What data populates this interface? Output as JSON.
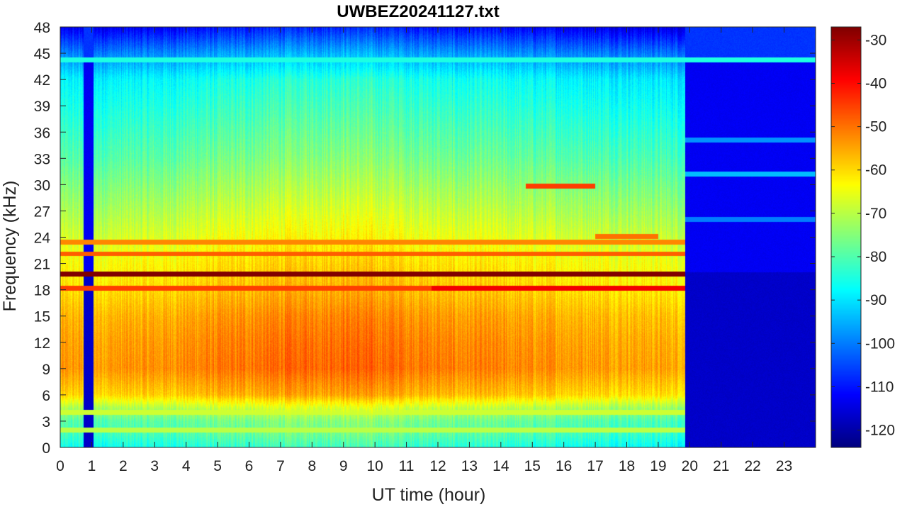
{
  "chart_data": {
    "type": "heatmap",
    "title": "UWBEZ20241127.txt",
    "xlabel": "UT time (hour)",
    "ylabel": "Frequency (kHz)",
    "xlim": [
      0,
      24
    ],
    "ylim": [
      0,
      48
    ],
    "xticks": [
      0,
      1,
      2,
      3,
      4,
      5,
      6,
      7,
      8,
      9,
      10,
      11,
      12,
      13,
      14,
      15,
      16,
      17,
      18,
      19,
      20,
      21,
      22,
      23
    ],
    "yticks": [
      0,
      3,
      6,
      9,
      12,
      15,
      18,
      21,
      24,
      27,
      30,
      33,
      36,
      39,
      42,
      45,
      48
    ],
    "colorbar": {
      "colormap": "jet",
      "range": [
        -124,
        -27
      ],
      "ticks": [
        -30,
        -40,
        -50,
        -60,
        -70,
        -80,
        -90,
        -100,
        -110,
        -120
      ]
    },
    "background_db": -123,
    "gap_intervals_hour": [
      [
        0.75,
        1.05
      ],
      [
        19.85,
        24
      ]
    ],
    "gap_db": -113,
    "base_spectrum": {
      "frequency_khz": [
        0,
        1.5,
        3,
        4.5,
        6,
        9,
        12,
        15,
        18,
        21,
        24,
        27,
        30,
        33,
        36,
        39,
        42,
        45,
        48
      ],
      "level_db": [
        -85,
        -80,
        -78,
        -70,
        -58,
        -52,
        -53,
        -55,
        -59,
        -62,
        -66,
        -70,
        -74,
        -78,
        -81,
        -84,
        -87,
        -98,
        -112
      ]
    },
    "time_modulation": {
      "hour": [
        0,
        3,
        5,
        7,
        9,
        10.5,
        12,
        14,
        16,
        18,
        19.8
      ],
      "offset_db": [
        -2,
        -1,
        1,
        3,
        4,
        3,
        1,
        0,
        -1,
        -2,
        -3
      ]
    },
    "emission_lines": [
      {
        "frequency_khz": 19.8,
        "level_db": -27,
        "from_hour": 0,
        "to_hour": 19.85
      },
      {
        "frequency_khz": 18.2,
        "level_db": -38,
        "from_hour": 11.8,
        "to_hour": 19.85
      },
      {
        "frequency_khz": 18.2,
        "level_db": -45,
        "from_hour": 0,
        "to_hour": 11.8
      },
      {
        "frequency_khz": 22.1,
        "level_db": -48,
        "from_hour": 0,
        "to_hour": 19.85
      },
      {
        "frequency_khz": 23.4,
        "level_db": -52,
        "from_hour": 0,
        "to_hour": 19.85
      },
      {
        "frequency_khz": 24.1,
        "level_db": -50,
        "from_hour": 17,
        "to_hour": 19
      },
      {
        "frequency_khz": 29.8,
        "level_db": -45,
        "from_hour": 14.8,
        "to_hour": 17
      },
      {
        "frequency_khz": 44.2,
        "level_db": -85,
        "from_hour": 0,
        "to_hour": 24
      },
      {
        "frequency_khz": 35.1,
        "level_db": -98,
        "from_hour": 19.85,
        "to_hour": 24
      },
      {
        "frequency_khz": 31.2,
        "level_db": -94,
        "from_hour": 19.85,
        "to_hour": 24
      },
      {
        "frequency_khz": 26.0,
        "level_db": -100,
        "from_hour": 19.85,
        "to_hour": 24
      },
      {
        "frequency_khz": 4.0,
        "level_db": -68,
        "from_hour": 0,
        "to_hour": 19.85
      },
      {
        "frequency_khz": 2.0,
        "level_db": -70,
        "from_hour": 0,
        "to_hour": 19.85
      }
    ]
  }
}
